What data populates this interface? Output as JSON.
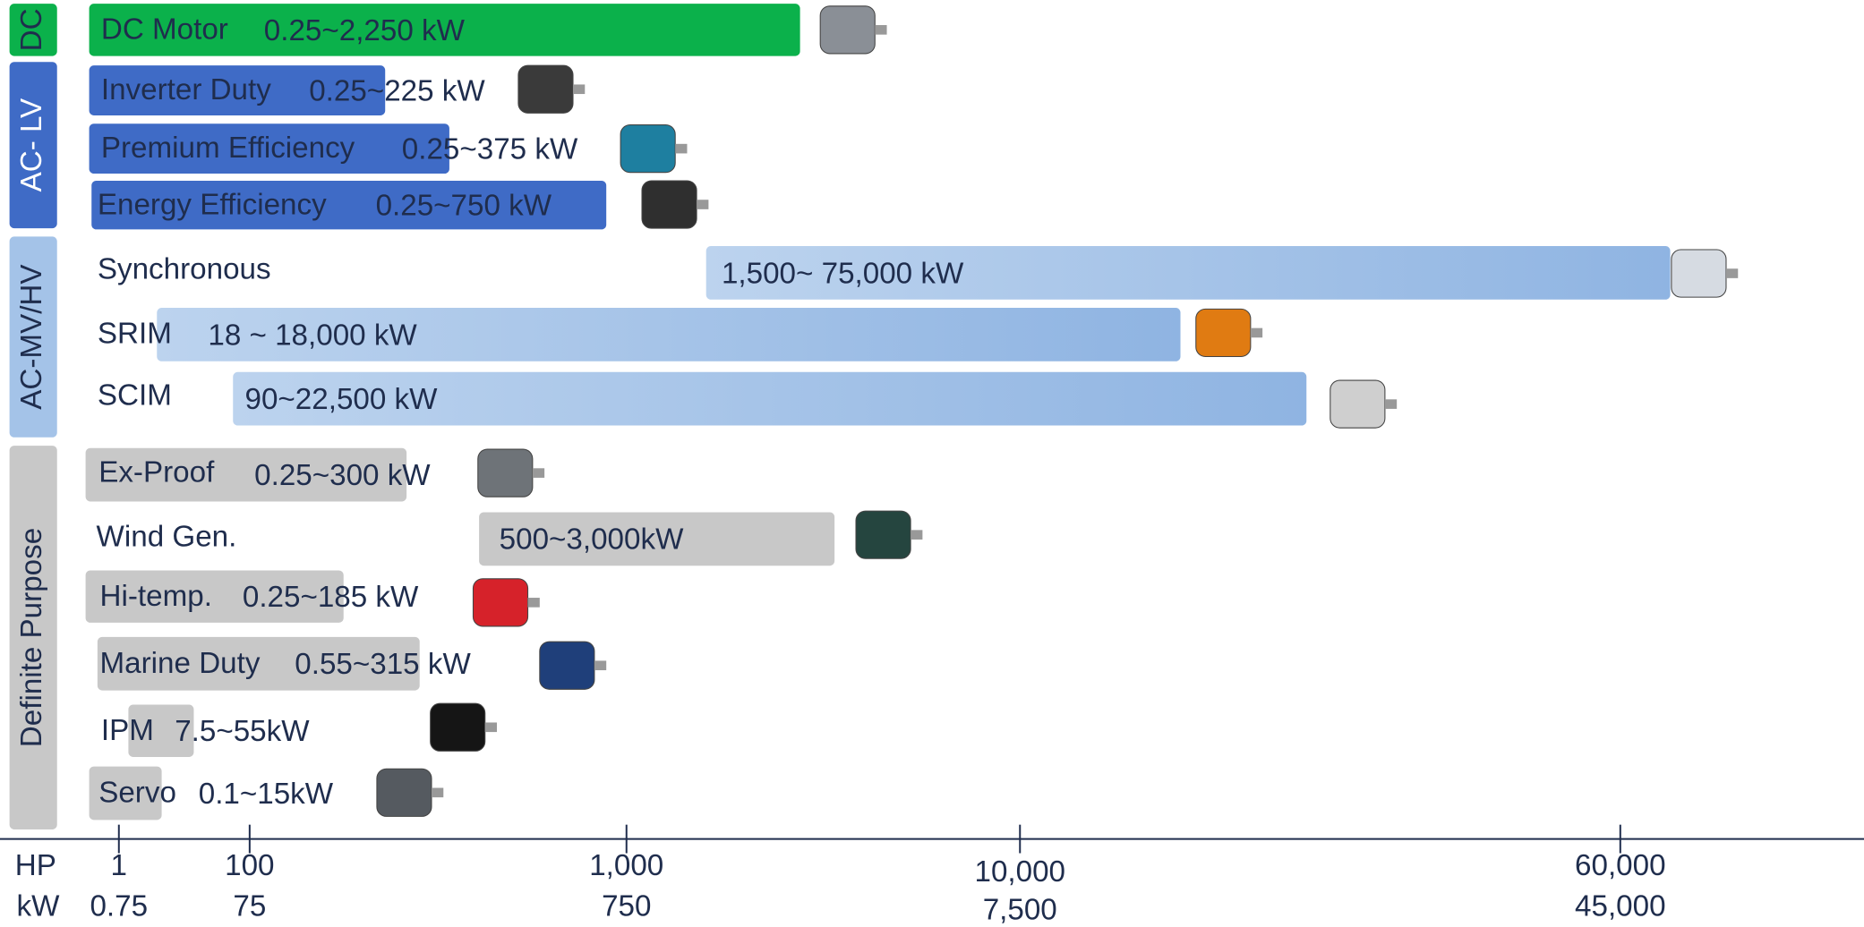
{
  "groups": [
    {
      "label": "DC",
      "rows": [
        {
          "name": "DC Motor",
          "range": "0.25~2,250 kW"
        }
      ]
    },
    {
      "label": "AC- LV",
      "rows": [
        {
          "name": "Inverter Duty",
          "range": "0.25~225 kW"
        },
        {
          "name": "Premium Efficiency",
          "range": "0.25~375 kW"
        },
        {
          "name": "Energy Efficiency",
          "range": "0.25~750 kW"
        }
      ]
    },
    {
      "label": "AC-MV/HV",
      "rows": [
        {
          "name": "Synchronous",
          "range": "1,500~ 75,000 kW"
        },
        {
          "name": "SRIM",
          "range": "18 ~ 18,000 kW"
        },
        {
          "name": "SCIM",
          "range": "90~22,500 kW"
        }
      ]
    },
    {
      "label": "Definite Purpose",
      "rows": [
        {
          "name": "Ex-Proof",
          "range": "0.25~300 kW"
        },
        {
          "name": "Wind Gen.",
          "range": "500~3,000kW"
        },
        {
          "name": "Hi-temp.",
          "range": "0.25~185 kW"
        },
        {
          "name": "Marine Duty",
          "range": "0.55~315 kW"
        },
        {
          "name": "IPM",
          "range": "7.5~55kW"
        },
        {
          "name": "Servo",
          "range": "0.1~15kW"
        }
      ]
    }
  ],
  "axis": {
    "hp_label": "HP",
    "kw_label": "kW",
    "ticks": [
      {
        "hp": "1",
        "kw": "0.75"
      },
      {
        "hp": "100",
        "kw": "75"
      },
      {
        "hp": "1,000",
        "kw": "750"
      },
      {
        "hp": "10,000",
        "kw": "7,500"
      },
      {
        "hp": "60,000",
        "kw": "45,000"
      }
    ]
  }
}
